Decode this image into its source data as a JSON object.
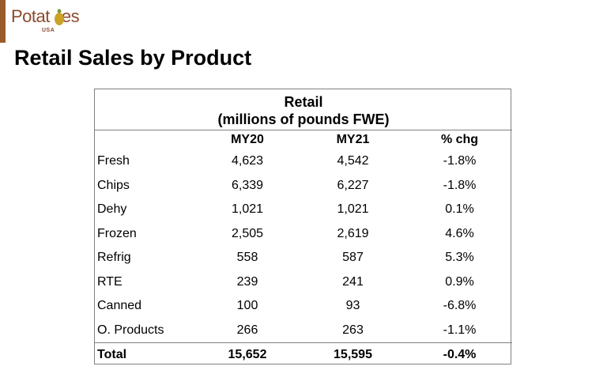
{
  "logo": {
    "word": "Potat",
    "word_end": "es",
    "sub": "USA"
  },
  "slide_title": "Retail Sales by Product",
  "table": {
    "caption_line1": "Retail",
    "caption_line2": "(millions of pounds FWE)",
    "headers": [
      "",
      "MY20",
      "MY21",
      "% chg"
    ],
    "rows": [
      {
        "label": "Fresh",
        "my20": "4,623",
        "my21": "4,542",
        "chg": "-1.8%"
      },
      {
        "label": "Chips",
        "my20": "6,339",
        "my21": "6,227",
        "chg": "-1.8%"
      },
      {
        "label": "Dehy",
        "my20": "1,021",
        "my21": "1,021",
        "chg": "0.1%"
      },
      {
        "label": "Frozen",
        "my20": "2,505",
        "my21": "2,619",
        "chg": "4.6%"
      },
      {
        "label": "Refrig",
        "my20": "558",
        "my21": "587",
        "chg": "5.3%"
      },
      {
        "label": "RTE",
        "my20": "239",
        "my21": "241",
        "chg": "0.9%"
      },
      {
        "label": "Canned",
        "my20": "100",
        "my21": "93",
        "chg": "-6.8%"
      },
      {
        "label": "O. Products",
        "my20": "266",
        "my21": "263",
        "chg": "-1.1%"
      }
    ],
    "total": {
      "label": "Total",
      "my20": "15,652",
      "my21": "15,595",
      "chg": "-0.4%"
    }
  },
  "colors": {
    "accent": "#9a5b2a",
    "logo": "#8a4a2c",
    "logo_mark": "#c9a227",
    "border": "#808080"
  }
}
